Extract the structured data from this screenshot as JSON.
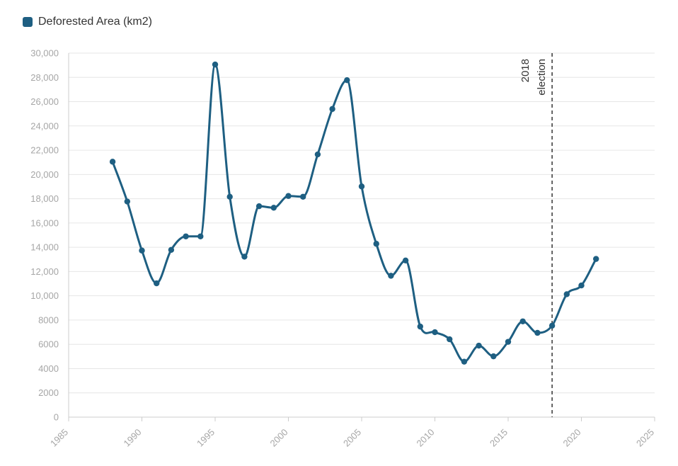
{
  "legend": {
    "label": "Deforested Area (km2)"
  },
  "colors": {
    "series": "#1e5f82",
    "grid": "#e6e6e6",
    "axis": "#cccccc",
    "tick_text": "#a6a6a6",
    "annotation_line": "#333333"
  },
  "chart_data": {
    "type": "line",
    "title": "",
    "xlabel": "",
    "ylabel": "",
    "xlim": [
      1985,
      2025
    ],
    "ylim": [
      0,
      30000
    ],
    "grid": true,
    "legend_position": "top-left",
    "x_ticks": [
      "1985",
      "1990",
      "1995",
      "2000",
      "2005",
      "2010",
      "2015",
      "2020",
      "2025"
    ],
    "y_ticks": [
      "0",
      "2000",
      "4000",
      "6000",
      "8000",
      "10,000",
      "12,000",
      "14,000",
      "16,000",
      "18,000",
      "20,000",
      "22,000",
      "24,000",
      "26,000",
      "28,000",
      "30,000"
    ],
    "series": [
      {
        "name": "Deforested Area (km2)",
        "x": [
          1988,
          1989,
          1990,
          1991,
          1992,
          1993,
          1994,
          1995,
          1996,
          1997,
          1998,
          1999,
          2000,
          2001,
          2002,
          2003,
          2004,
          2005,
          2006,
          2007,
          2008,
          2009,
          2010,
          2011,
          2012,
          2013,
          2014,
          2015,
          2016,
          2017,
          2018,
          2019,
          2020,
          2021
        ],
        "values": [
          21050,
          17770,
          13730,
          11030,
          13786,
          14896,
          14896,
          29059,
          18161,
          13227,
          17383,
          17259,
          18226,
          18165,
          21651,
          25396,
          27772,
          19014,
          14286,
          11651,
          12911,
          7464,
          7000,
          6418,
          4571,
          5891,
          5012,
          6207,
          7893,
          6947,
          7536,
          10129,
          10851,
          13038
        ]
      }
    ],
    "annotations": [
      {
        "x": 2018,
        "line1": "2018",
        "line2": "election"
      }
    ]
  }
}
